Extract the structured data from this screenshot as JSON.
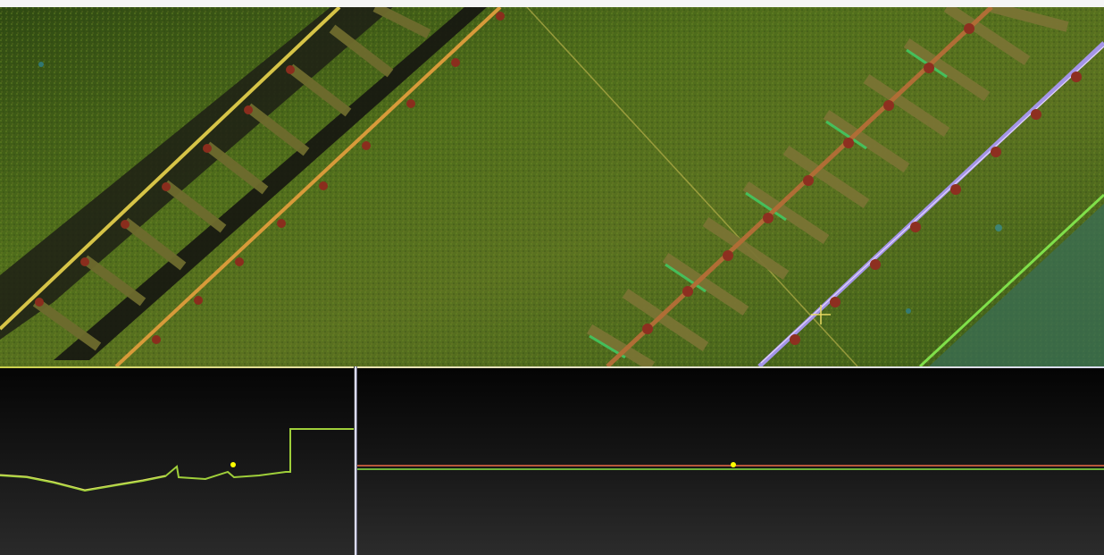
{
  "colors": {
    "ground": "#4d6b1a",
    "rail_warm": "#d9b53a",
    "rail_cool": "#9a8fe0",
    "sleeper": "#6f6a2e",
    "marker": "#ffff00",
    "viewport_border_top": "#c9d04a",
    "viewport_border_side": "#d9dcf2"
  },
  "views": {
    "top": {
      "name": "plan-view",
      "content": "point-cloud-railway"
    },
    "left": {
      "name": "cross-section-view"
    },
    "right": {
      "name": "longitudinal-profile-view"
    }
  },
  "icons": [
    "crosshair-cursor-icon",
    "profile-marker-icon"
  ]
}
